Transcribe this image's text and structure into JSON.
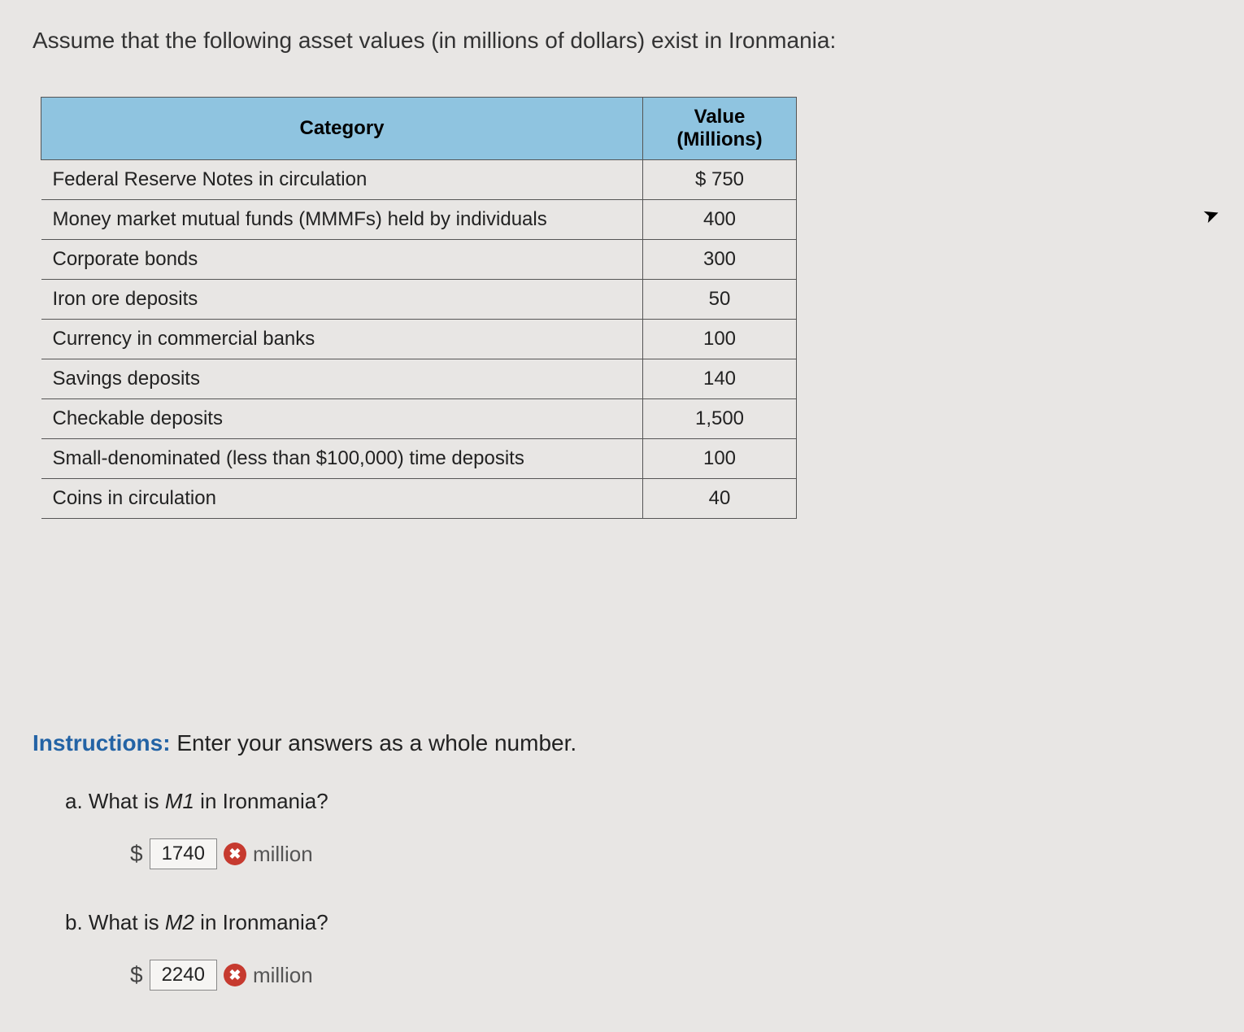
{
  "question": "Assume that the following asset values (in millions of dollars) exist in Ironmania:",
  "table": {
    "headers": {
      "category": "Category",
      "value": "Value (Millions)"
    },
    "rows": [
      {
        "category": "Federal Reserve Notes in circulation",
        "value": "$ 750"
      },
      {
        "category": "Money market mutual funds (MMMFs) held by individuals",
        "value": "400"
      },
      {
        "category": "Corporate bonds",
        "value": "300"
      },
      {
        "category": "Iron ore deposits",
        "value": "50"
      },
      {
        "category": "Currency in commercial banks",
        "value": "100"
      },
      {
        "category": "Savings deposits",
        "value": "140"
      },
      {
        "category": "Checkable deposits",
        "value": "1,500"
      },
      {
        "category": "Small-denominated (less than $100,000) time deposits",
        "value": "100"
      },
      {
        "category": "Coins in circulation",
        "value": "40"
      }
    ]
  },
  "instructions": {
    "label": "Instructions:",
    "text": " Enter your answers as a whole number."
  },
  "parts": {
    "a": {
      "letter": "a.",
      "pre": "  What is ",
      "var": "M1",
      "post": " in Ironmania?",
      "dollar": "$",
      "answer": "1740",
      "badge": "✖",
      "unit": "million"
    },
    "b": {
      "letter": "b.",
      "pre": "  What is ",
      "var": "M2",
      "post": " in Ironmania?",
      "dollar": "$",
      "answer": "2240",
      "badge": "✖",
      "unit": "million"
    }
  },
  "colors": {
    "header_bg": "#8fc4e0",
    "instructions_label": "#2363a5",
    "badge_bg": "#c63a2f",
    "page_bg": "#e8e6e4"
  }
}
